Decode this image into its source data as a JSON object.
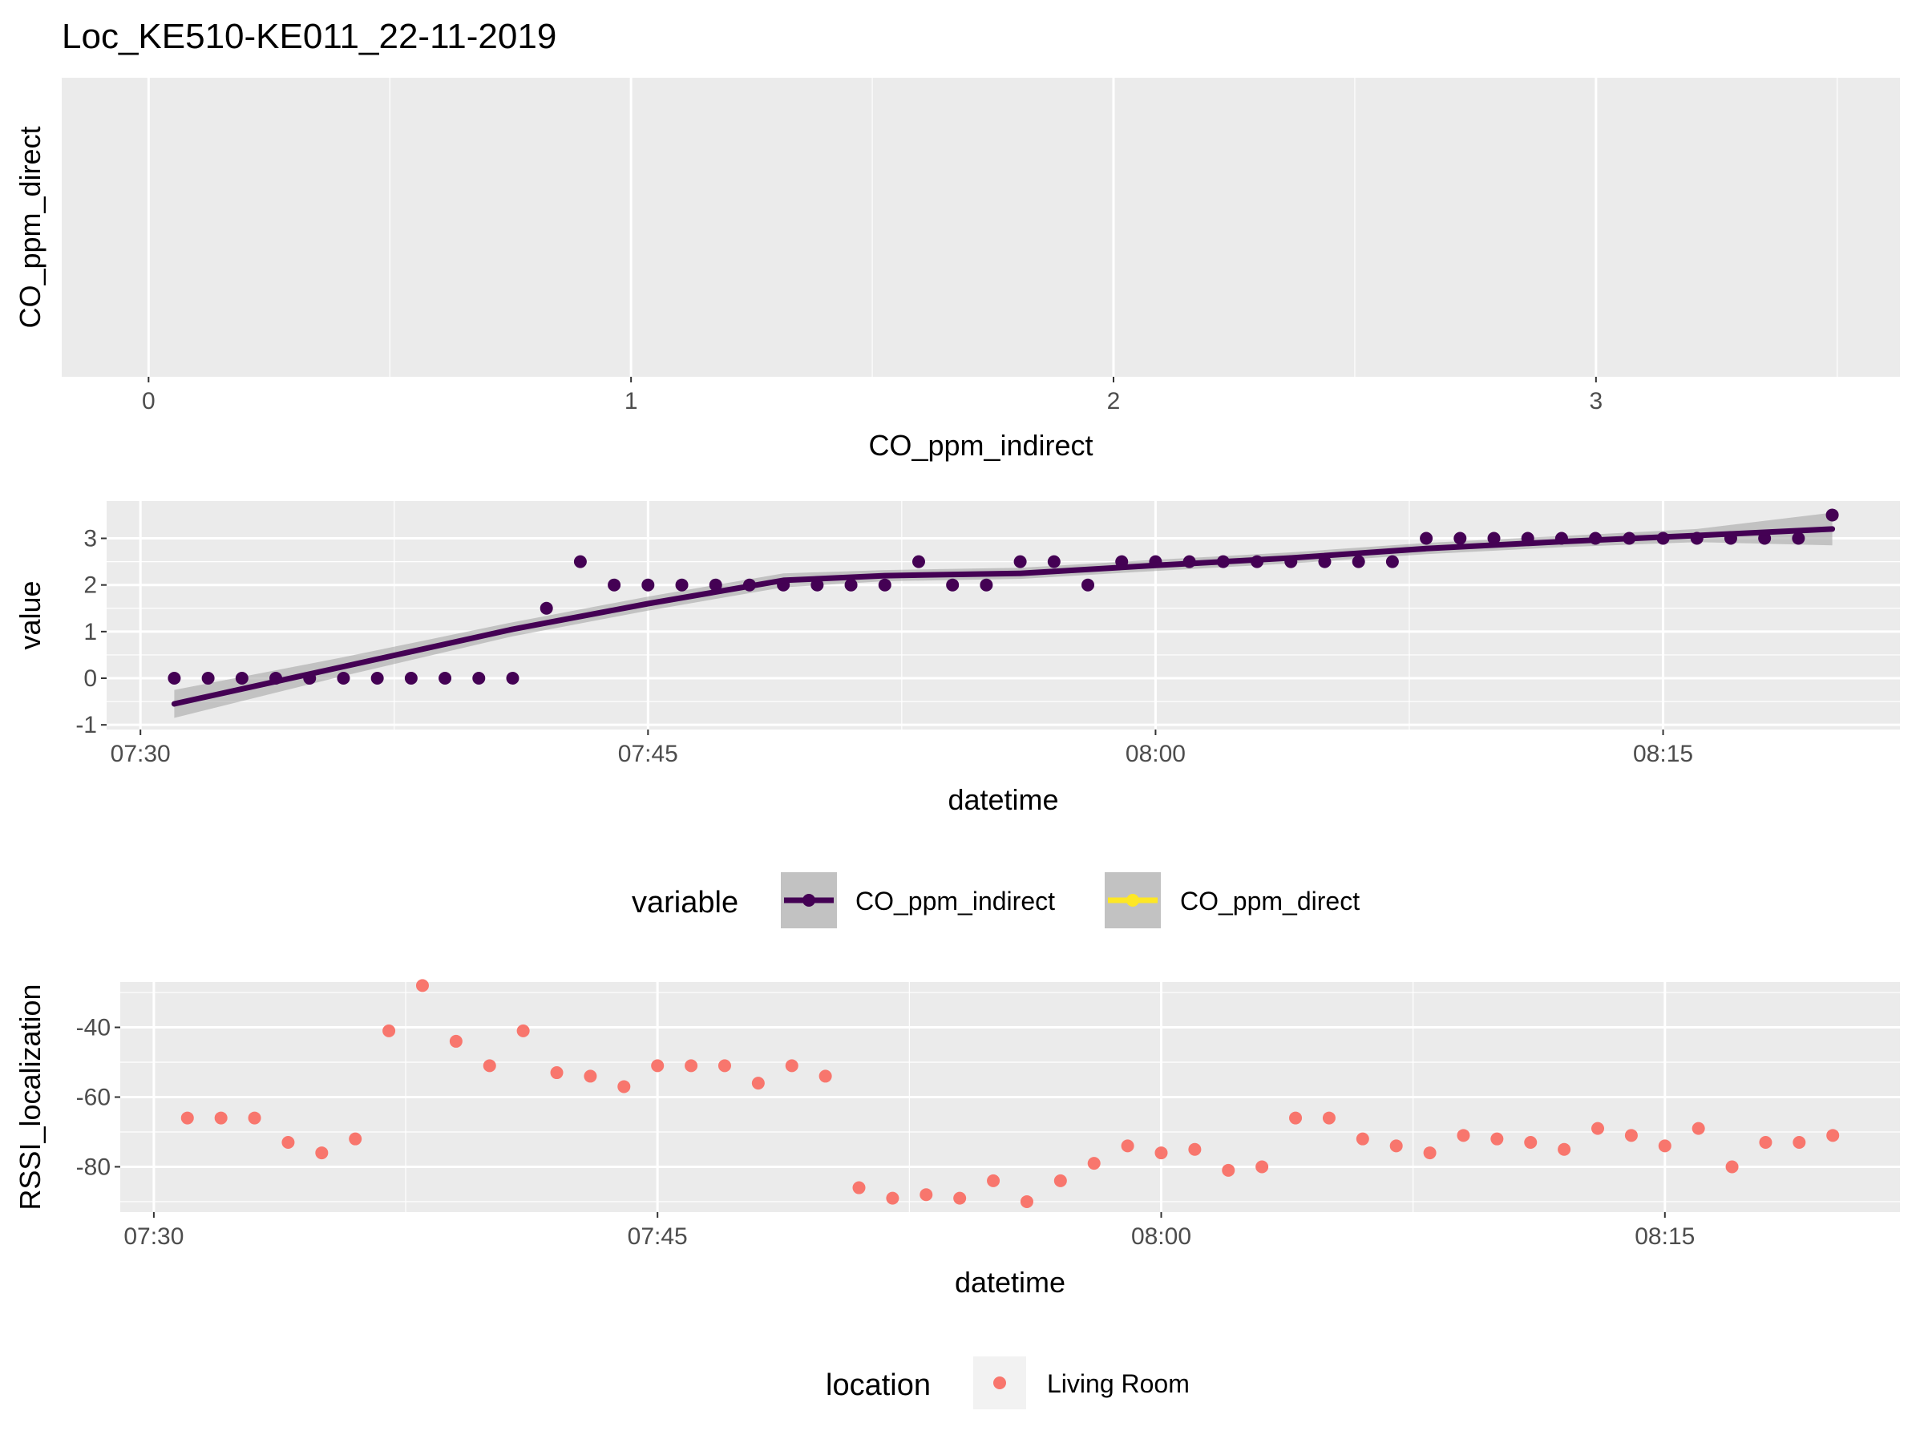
{
  "title": "Loc_KE510-KE011_22-11-2019",
  "chart_data": [
    {
      "type": "scatter",
      "panel": "top",
      "xlabel": "CO_ppm_indirect",
      "ylabel": "CO_ppm_direct",
      "xlim": [
        -0.18,
        3.63
      ],
      "x_ticks": [
        0,
        1,
        2,
        3
      ],
      "x_tick_labels": [
        "0",
        "1",
        "2",
        "3"
      ],
      "points": []
    },
    {
      "type": "line",
      "panel": "middle",
      "xlabel": "datetime",
      "ylabel": "value",
      "xlim": [
        "07:29",
        "08:22"
      ],
      "ylim": [
        -1.1,
        3.8
      ],
      "x_ticks": [
        "07:30",
        "07:45",
        "08:00",
        "08:15"
      ],
      "y_ticks": [
        -1,
        0,
        1,
        2,
        3
      ],
      "y_tick_labels": [
        "-1",
        "0",
        "1",
        "2",
        "3"
      ],
      "series": [
        {
          "name": "CO_ppm_indirect",
          "color": "#440154",
          "points": [
            {
              "x": "07:31",
              "y": 0
            },
            {
              "x": "07:32",
              "y": 0
            },
            {
              "x": "07:33",
              "y": 0
            },
            {
              "x": "07:34",
              "y": 0
            },
            {
              "x": "07:35",
              "y": 0
            },
            {
              "x": "07:36",
              "y": 0
            },
            {
              "x": "07:37",
              "y": 0
            },
            {
              "x": "07:38",
              "y": 0
            },
            {
              "x": "07:39",
              "y": 0
            },
            {
              "x": "07:40",
              "y": 0
            },
            {
              "x": "07:41",
              "y": 0
            },
            {
              "x": "07:42",
              "y": 1.5
            },
            {
              "x": "07:43",
              "y": 2.5
            },
            {
              "x": "07:44",
              "y": 2
            },
            {
              "x": "07:45",
              "y": 2
            },
            {
              "x": "07:46",
              "y": 2
            },
            {
              "x": "07:47",
              "y": 2
            },
            {
              "x": "07:48",
              "y": 2
            },
            {
              "x": "07:49",
              "y": 2
            },
            {
              "x": "07:50",
              "y": 2
            },
            {
              "x": "07:51",
              "y": 2
            },
            {
              "x": "07:52",
              "y": 2
            },
            {
              "x": "07:53",
              "y": 2.5
            },
            {
              "x": "07:54",
              "y": 2
            },
            {
              "x": "07:55",
              "y": 2
            },
            {
              "x": "07:56",
              "y": 2.5
            },
            {
              "x": "07:57",
              "y": 2.5
            },
            {
              "x": "07:58",
              "y": 2
            },
            {
              "x": "07:59",
              "y": 2.5
            },
            {
              "x": "08:00",
              "y": 2.5
            },
            {
              "x": "08:01",
              "y": 2.5
            },
            {
              "x": "08:02",
              "y": 2.5
            },
            {
              "x": "08:03",
              "y": 2.5
            },
            {
              "x": "08:04",
              "y": 2.5
            },
            {
              "x": "08:05",
              "y": 2.5
            },
            {
              "x": "08:06",
              "y": 2.5
            },
            {
              "x": "08:07",
              "y": 2.5
            },
            {
              "x": "08:08",
              "y": 3
            },
            {
              "x": "08:09",
              "y": 3
            },
            {
              "x": "08:10",
              "y": 3
            },
            {
              "x": "08:11",
              "y": 3
            },
            {
              "x": "08:12",
              "y": 3
            },
            {
              "x": "08:13",
              "y": 3
            },
            {
              "x": "08:14",
              "y": 3
            },
            {
              "x": "08:15",
              "y": 3
            },
            {
              "x": "08:16",
              "y": 3
            },
            {
              "x": "08:17",
              "y": 3
            },
            {
              "x": "08:18",
              "y": 3
            },
            {
              "x": "08:19",
              "y": 3
            },
            {
              "x": "08:20",
              "y": 3.5
            }
          ],
          "smooth": [
            {
              "x": "07:31",
              "y": -0.55,
              "lo": -0.85,
              "hi": -0.25
            },
            {
              "x": "07:36",
              "y": 0.25,
              "lo": 0.05,
              "hi": 0.45
            },
            {
              "x": "07:41",
              "y": 1.05,
              "lo": 0.9,
              "hi": 1.2
            },
            {
              "x": "07:45",
              "y": 1.6,
              "lo": 1.45,
              "hi": 1.75
            },
            {
              "x": "07:49",
              "y": 2.1,
              "lo": 1.95,
              "hi": 2.25
            },
            {
              "x": "07:52",
              "y": 2.2,
              "lo": 2.08,
              "hi": 2.32
            },
            {
              "x": "07:56",
              "y": 2.25,
              "lo": 2.13,
              "hi": 2.37
            },
            {
              "x": "08:00",
              "y": 2.42,
              "lo": 2.3,
              "hi": 2.54
            },
            {
              "x": "08:04",
              "y": 2.58,
              "lo": 2.46,
              "hi": 2.7
            },
            {
              "x": "08:08",
              "y": 2.78,
              "lo": 2.66,
              "hi": 2.9
            },
            {
              "x": "08:12",
              "y": 2.93,
              "lo": 2.81,
              "hi": 3.05
            },
            {
              "x": "08:16",
              "y": 3.06,
              "lo": 2.92,
              "hi": 3.2
            },
            {
              "x": "08:20",
              "y": 3.2,
              "lo": 2.85,
              "hi": 3.55
            }
          ]
        }
      ],
      "legend": {
        "position": "bottom",
        "title": "variable",
        "entries": [
          {
            "label": "CO_ppm_indirect",
            "color": "#440154"
          },
          {
            "label": "CO_ppm_direct",
            "color": "#FDE725"
          }
        ]
      }
    },
    {
      "type": "scatter",
      "panel": "bottom",
      "xlabel": "datetime",
      "ylabel": "RSSI_localization",
      "xlim": [
        "07:29",
        "08:22"
      ],
      "ylim": [
        -93,
        -27
      ],
      "x_ticks": [
        "07:30",
        "07:45",
        "08:00",
        "08:15"
      ],
      "y_ticks": [
        -80,
        -60,
        -40
      ],
      "y_tick_labels": [
        "-80",
        "-60",
        "-40"
      ],
      "series": [
        {
          "name": "Living Room",
          "color": "#F8766D",
          "points": [
            {
              "x": "07:31",
              "y": -66
            },
            {
              "x": "07:32",
              "y": -66
            },
            {
              "x": "07:33",
              "y": -66
            },
            {
              "x": "07:34",
              "y": -73
            },
            {
              "x": "07:35",
              "y": -76
            },
            {
              "x": "07:36",
              "y": -72
            },
            {
              "x": "07:37",
              "y": -41
            },
            {
              "x": "07:38",
              "y": -28
            },
            {
              "x": "07:39",
              "y": -44
            },
            {
              "x": "07:40",
              "y": -51
            },
            {
              "x": "07:41",
              "y": -41
            },
            {
              "x": "07:42",
              "y": -53
            },
            {
              "x": "07:43",
              "y": -54
            },
            {
              "x": "07:44",
              "y": -57
            },
            {
              "x": "07:45",
              "y": -51
            },
            {
              "x": "07:46",
              "y": -51
            },
            {
              "x": "07:47",
              "y": -51
            },
            {
              "x": "07:48",
              "y": -56
            },
            {
              "x": "07:49",
              "y": -51
            },
            {
              "x": "07:50",
              "y": -54
            },
            {
              "x": "07:51",
              "y": -86
            },
            {
              "x": "07:52",
              "y": -89
            },
            {
              "x": "07:53",
              "y": -88
            },
            {
              "x": "07:54",
              "y": -89
            },
            {
              "x": "07:55",
              "y": -84
            },
            {
              "x": "07:56",
              "y": -90
            },
            {
              "x": "07:57",
              "y": -84
            },
            {
              "x": "07:58",
              "y": -79
            },
            {
              "x": "07:59",
              "y": -74
            },
            {
              "x": "08:00",
              "y": -76
            },
            {
              "x": "08:01",
              "y": -75
            },
            {
              "x": "08:02",
              "y": -81
            },
            {
              "x": "08:03",
              "y": -80
            },
            {
              "x": "08:04",
              "y": -66
            },
            {
              "x": "08:05",
              "y": -66
            },
            {
              "x": "08:06",
              "y": -72
            },
            {
              "x": "08:07",
              "y": -74
            },
            {
              "x": "08:08",
              "y": -76
            },
            {
              "x": "08:09",
              "y": -71
            },
            {
              "x": "08:10",
              "y": -72
            },
            {
              "x": "08:11",
              "y": -73
            },
            {
              "x": "08:12",
              "y": -75
            },
            {
              "x": "08:13",
              "y": -69
            },
            {
              "x": "08:14",
              "y": -71
            },
            {
              "x": "08:15",
              "y": -74
            },
            {
              "x": "08:16",
              "y": -69
            },
            {
              "x": "08:17",
              "y": -80
            },
            {
              "x": "08:18",
              "y": -73
            },
            {
              "x": "08:19",
              "y": -73
            },
            {
              "x": "08:20",
              "y": -71
            }
          ]
        }
      ],
      "legend": {
        "position": "bottom",
        "title": "location",
        "entries": [
          {
            "label": "Living Room",
            "color": "#F8766D"
          }
        ]
      }
    }
  ]
}
